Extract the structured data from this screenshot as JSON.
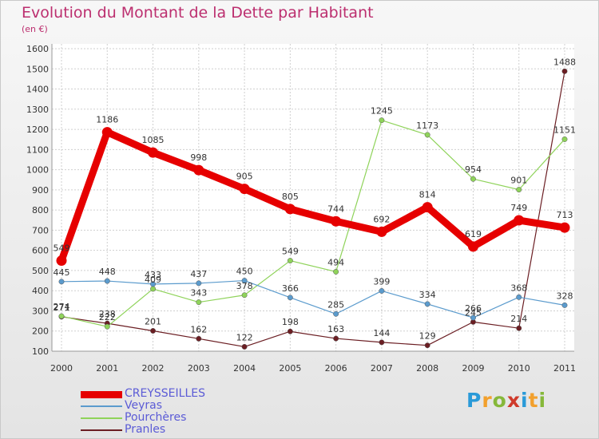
{
  "header": {
    "title": "Evolution du Montant de la Dette par Habitant",
    "unit": "(en €)"
  },
  "logo": {
    "letters": [
      "P",
      "r",
      "o",
      "x",
      "i",
      "t",
      "i"
    ],
    "colors": [
      "#2a9ad8",
      "#f2a02d",
      "#86b83a",
      "#cf3a2b",
      "#2a9ad8",
      "#f2a02d",
      "#86b83a"
    ]
  },
  "chart_data": {
    "type": "line",
    "x": [
      "2000",
      "2001",
      "2002",
      "2003",
      "2004",
      "2005",
      "2006",
      "2007",
      "2008",
      "2009",
      "2010",
      "2011"
    ],
    "ylim": [
      100,
      1600
    ],
    "yticks": [
      "100",
      "200",
      "300",
      "400",
      "500",
      "600",
      "700",
      "800",
      "900",
      "1000",
      "1100",
      "1200",
      "1300",
      "1400",
      "1500",
      "1600"
    ],
    "grid": true,
    "legend_position": "bottom-left",
    "series": [
      {
        "name": "CREYSSEILLES",
        "color": "#e60000",
        "values": [
          549,
          1186,
          1085,
          998,
          905,
          805,
          744,
          692,
          814,
          619,
          749,
          713
        ]
      },
      {
        "name": "Veyras",
        "color": "#5b9bcd",
        "values": [
          445,
          448,
          433,
          437,
          450,
          366,
          285,
          399,
          334,
          266,
          368,
          328
        ]
      },
      {
        "name": "Pourchères",
        "color": "#8fd35a",
        "values": [
          274,
          222,
          409,
          343,
          378,
          549,
          494,
          1245,
          1173,
          954,
          901,
          1151
        ]
      },
      {
        "name": "Pranles",
        "color": "#6b1e23",
        "values": [
          271,
          238,
          201,
          162,
          122,
          198,
          163,
          144,
          129,
          245,
          214,
          1488
        ]
      }
    ]
  }
}
